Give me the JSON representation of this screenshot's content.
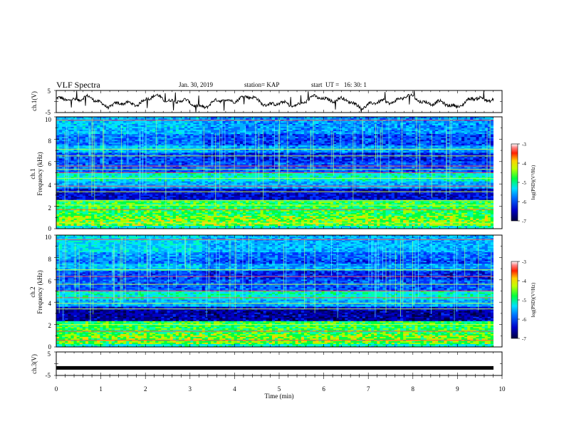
{
  "header": {
    "title": "VLF Spectra",
    "date": "Jan. 30, 2019",
    "station": "station= KAP",
    "start": "start  UT =   16: 30: 1"
  },
  "chart_data": [
    {
      "type": "line",
      "panel": "ch1-voltage",
      "ylabel": "ch.1(V)",
      "yticks": [
        "5",
        "-5"
      ],
      "ylim": [
        -5,
        5
      ],
      "xlim": [
        0,
        10
      ],
      "trace_color": "#000000"
    },
    {
      "type": "heatmap",
      "panel": "ch1-spectrogram",
      "ylabel": "ch.1",
      "ylabel2": "Frequency  (kHz)",
      "yticks": [
        "0",
        "2",
        "4",
        "6",
        "8",
        "10"
      ],
      "ylim": [
        0,
        10
      ],
      "xlim": [
        0,
        9.8
      ],
      "colorbar": {
        "label": "log(PSD)(V²/Hz)",
        "ticks": [
          "-3",
          "-4",
          "-5",
          "-6",
          "-7"
        ],
        "range": [
          -7,
          -3
        ]
      }
    },
    {
      "type": "heatmap",
      "panel": "ch2-spectrogram",
      "ylabel": "ch.2",
      "ylabel2": "Frequency  (kHz)",
      "yticks": [
        "0",
        "2",
        "4",
        "6",
        "8",
        "10"
      ],
      "ylim": [
        0,
        10
      ],
      "xlim": [
        0,
        9.8
      ],
      "colorbar": {
        "label": "log(PSD)(V²/Hz)",
        "ticks": [
          "-3",
          "-4",
          "-5",
          "-6",
          "-7"
        ],
        "range": [
          -7,
          -3
        ]
      }
    },
    {
      "type": "line",
      "panel": "ch3-voltage",
      "ylabel": "ch.3(V)",
      "yticks": [
        "5",
        "-5"
      ],
      "ylim": [
        -5,
        5
      ],
      "xlim": [
        0,
        10
      ],
      "level": -1.8,
      "trace_color": "#000000"
    }
  ],
  "xaxis": {
    "label": "Time  (min)",
    "ticks": [
      "0",
      "1",
      "2",
      "3",
      "4",
      "5",
      "6",
      "7",
      "8",
      "9",
      "10"
    ],
    "range": [
      0,
      10
    ]
  }
}
